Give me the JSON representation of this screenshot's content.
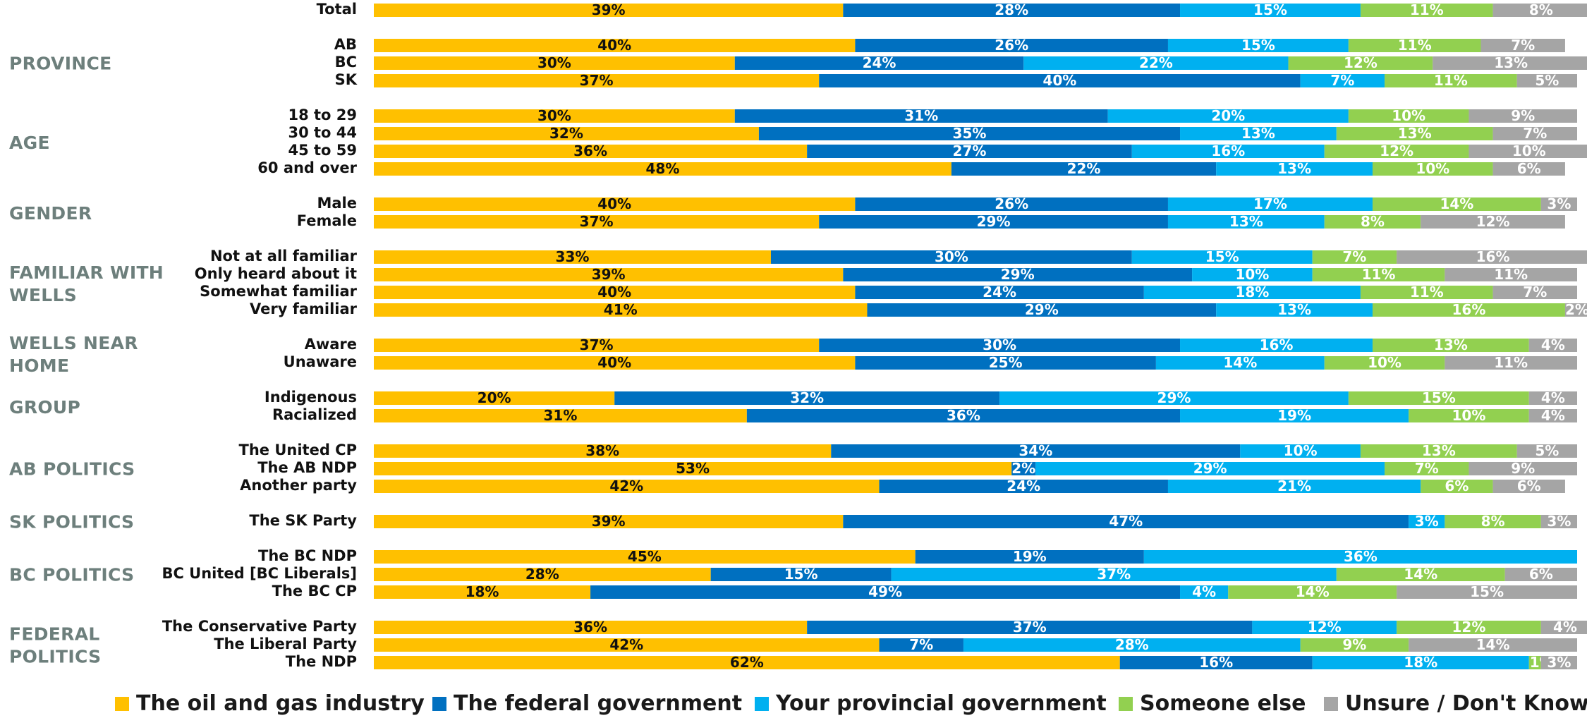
{
  "chart_data": {
    "type": "bar",
    "orientation": "horizontal",
    "stacked": true,
    "normalized": true,
    "xlim": [
      0,
      100
    ],
    "grid": false,
    "legend_position": "bottom",
    "series": [
      {
        "name": "The oil and gas industry",
        "color": "#FFC000",
        "text_color": "#111111"
      },
      {
        "name": "The federal government",
        "color": "#0070C0",
        "text_color": "#FFFFFF"
      },
      {
        "name": "Your provincial government",
        "color": "#00B0F0",
        "text_color": "#FFFFFF"
      },
      {
        "name": "Someone else",
        "color": "#92D050",
        "text_color": "#FFFFFF"
      },
      {
        "name": "Unsure / Don't Know",
        "color": "#A5A5A5",
        "text_color": "#FFFFFF"
      }
    ],
    "groups": [
      {
        "label": "",
        "rows": [
          {
            "label": "Total",
            "values": [
              39,
              28,
              15,
              11,
              8
            ]
          }
        ]
      },
      {
        "label": "PROVINCE",
        "rows": [
          {
            "label": "AB",
            "values": [
              40,
              26,
              15,
              11,
              7
            ]
          },
          {
            "label": "BC",
            "values": [
              30,
              24,
              22,
              12,
              13
            ]
          },
          {
            "label": "SK",
            "values": [
              37,
              40,
              7,
              11,
              5
            ]
          }
        ]
      },
      {
        "label": "AGE",
        "rows": [
          {
            "label": "18 to 29",
            "values": [
              30,
              31,
              20,
              10,
              9
            ]
          },
          {
            "label": "30 to 44",
            "values": [
              32,
              35,
              13,
              13,
              7
            ]
          },
          {
            "label": "45 to 59",
            "values": [
              36,
              27,
              16,
              12,
              10
            ]
          },
          {
            "label": "60 and over",
            "values": [
              48,
              22,
              13,
              10,
              6
            ]
          }
        ]
      },
      {
        "label": "GENDER",
        "rows": [
          {
            "label": "Male",
            "values": [
              40,
              26,
              17,
              14,
              3
            ]
          },
          {
            "label": "Female",
            "values": [
              37,
              29,
              13,
              8,
              12
            ]
          }
        ]
      },
      {
        "label": "FAMILIAR WITH WELLS",
        "rows": [
          {
            "label": "Not at all familiar",
            "values": [
              33,
              30,
              15,
              7,
              16
            ]
          },
          {
            "label": "Only heard about it",
            "values": [
              39,
              29,
              10,
              11,
              11
            ]
          },
          {
            "label": "Somewhat familiar",
            "values": [
              40,
              24,
              18,
              11,
              7
            ]
          },
          {
            "label": "Very familiar",
            "values": [
              41,
              29,
              13,
              16,
              2
            ]
          }
        ]
      },
      {
        "label": "WELLS NEAR HOME",
        "rows": [
          {
            "label": "Aware",
            "values": [
              37,
              30,
              16,
              13,
              4
            ]
          },
          {
            "label": "Unaware",
            "values": [
              40,
              25,
              14,
              10,
              11
            ]
          }
        ]
      },
      {
        "label": "GROUP",
        "rows": [
          {
            "label": "Indigenous",
            "values": [
              20,
              32,
              29,
              15,
              4
            ]
          },
          {
            "label": "Racialized",
            "values": [
              31,
              36,
              19,
              10,
              4
            ]
          }
        ]
      },
      {
        "label": "AB POLITICS",
        "rows": [
          {
            "label": "The United CP",
            "values": [
              38,
              34,
              10,
              13,
              5
            ]
          },
          {
            "label": "The AB NDP",
            "values": [
              53,
              2,
              29,
              7,
              9
            ]
          },
          {
            "label": "Another party",
            "values": [
              42,
              24,
              21,
              6,
              6
            ]
          }
        ]
      },
      {
        "label": "SK POLITICS",
        "rows": [
          {
            "label": "The SK Party",
            "values": [
              39,
              47,
              3,
              8,
              3
            ]
          }
        ]
      },
      {
        "label": "BC POLITICS",
        "rows": [
          {
            "label": "The BC NDP",
            "values": [
              45,
              19,
              36,
              0,
              0
            ]
          },
          {
            "label": "BC United [BC Liberals]",
            "values": [
              28,
              15,
              37,
              14,
              6
            ]
          },
          {
            "label": "The BC CP",
            "values": [
              18,
              49,
              4,
              14,
              15
            ]
          }
        ]
      },
      {
        "label": "FEDERAL POLITICS",
        "rows": [
          {
            "label": "The Conservative Party",
            "values": [
              36,
              37,
              12,
              12,
              4
            ]
          },
          {
            "label": "The Liberal Party",
            "values": [
              42,
              7,
              28,
              9,
              14
            ]
          },
          {
            "label": "The NDP",
            "values": [
              62,
              16,
              18,
              1,
              3
            ]
          }
        ]
      }
    ]
  }
}
